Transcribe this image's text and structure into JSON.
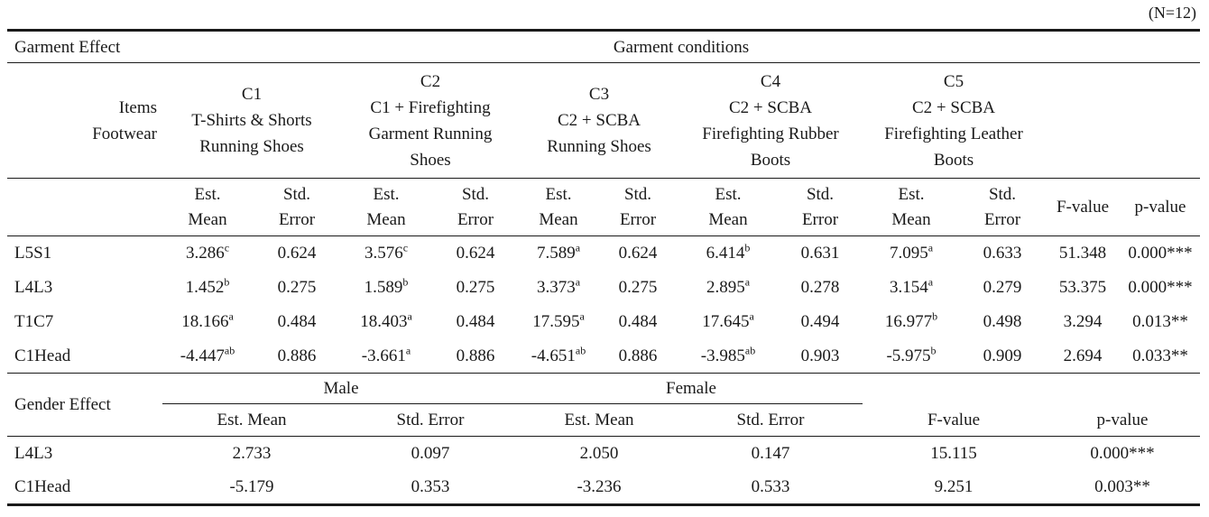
{
  "note": "(N=12)",
  "garment": {
    "section_label": "Garment Effect",
    "conditions_label": "Garment conditions",
    "items_label": "Items",
    "footwear_label": "Footwear",
    "conditions": [
      {
        "code": "C1",
        "line1": "T-Shirts & Shorts",
        "line2": "Running Shoes",
        "line3": ""
      },
      {
        "code": "C2",
        "line1": "C1 + Firefighting",
        "line2": "Garment Running",
        "line3": "Shoes"
      },
      {
        "code": "C3",
        "line1": "C2 + SCBA",
        "line2": "Running Shoes",
        "line3": ""
      },
      {
        "code": "C4",
        "line1": "C2 + SCBA",
        "line2": "Firefighting Rubber",
        "line3": "Boots"
      },
      {
        "code": "C5",
        "line1": "C2 + SCBA",
        "line2": "Firefighting Leather",
        "line3": "Boots"
      }
    ],
    "col_est": [
      "Est.",
      "Mean"
    ],
    "col_std": [
      "Std.",
      "Error"
    ],
    "col_f": "F-value",
    "col_p": "p-value",
    "rows": [
      {
        "item": "L5S1",
        "cells": [
          {
            "mean": "3.286",
            "sup": "c",
            "se": "0.624"
          },
          {
            "mean": "3.576",
            "sup": "c",
            "se": "0.624"
          },
          {
            "mean": "7.589",
            "sup": "a",
            "se": "0.624"
          },
          {
            "mean": "6.414",
            "sup": "b",
            "se": "0.631"
          },
          {
            "mean": "7.095",
            "sup": "a",
            "se": "0.633"
          }
        ],
        "f": "51.348",
        "p": "0.000***"
      },
      {
        "item": "L4L3",
        "cells": [
          {
            "mean": "1.452",
            "sup": "b",
            "se": "0.275"
          },
          {
            "mean": "1.589",
            "sup": "b",
            "se": "0.275"
          },
          {
            "mean": "3.373",
            "sup": "a",
            "se": "0.275"
          },
          {
            "mean": "2.895",
            "sup": "a",
            "se": "0.278"
          },
          {
            "mean": "3.154",
            "sup": "a",
            "se": "0.279"
          }
        ],
        "f": "53.375",
        "p": "0.000***"
      },
      {
        "item": "T1C7",
        "cells": [
          {
            "mean": "18.166",
            "sup": "a",
            "se": "0.484"
          },
          {
            "mean": "18.403",
            "sup": "a",
            "se": "0.484"
          },
          {
            "mean": "17.595",
            "sup": "a",
            "se": "0.484"
          },
          {
            "mean": "17.645",
            "sup": "a",
            "se": "0.494"
          },
          {
            "mean": "16.977",
            "sup": "b",
            "se": "0.498"
          }
        ],
        "f": "3.294",
        "p": "0.013**"
      },
      {
        "item": "C1Head",
        "cells": [
          {
            "mean": "-4.447",
            "sup": "ab",
            "se": "0.886"
          },
          {
            "mean": "-3.661",
            "sup": "a",
            "se": "0.886"
          },
          {
            "mean": "-4.651",
            "sup": "ab",
            "se": "0.886"
          },
          {
            "mean": "-3.985",
            "sup": "ab",
            "se": "0.903"
          },
          {
            "mean": "-5.975",
            "sup": "b",
            "se": "0.909"
          }
        ],
        "f": "2.694",
        "p": "0.033**"
      }
    ]
  },
  "gender": {
    "section_label": "Gender Effect",
    "male_label": "Male",
    "female_label": "Female",
    "col_est_mean": "Est. Mean",
    "col_std_error": "Std. Error",
    "col_f": "F-value",
    "col_p": "p-value",
    "rows": [
      {
        "item": "L4L3",
        "m_mean": "2.733",
        "m_se": "0.097",
        "f_mean": "2.050",
        "f_se": "0.147",
        "f": "15.115",
        "p": "0.000***"
      },
      {
        "item": "C1Head",
        "m_mean": "-5.179",
        "m_se": "0.353",
        "f_mean": "-3.236",
        "f_se": "0.533",
        "f": "9.251",
        "p": "0.003**"
      }
    ]
  }
}
